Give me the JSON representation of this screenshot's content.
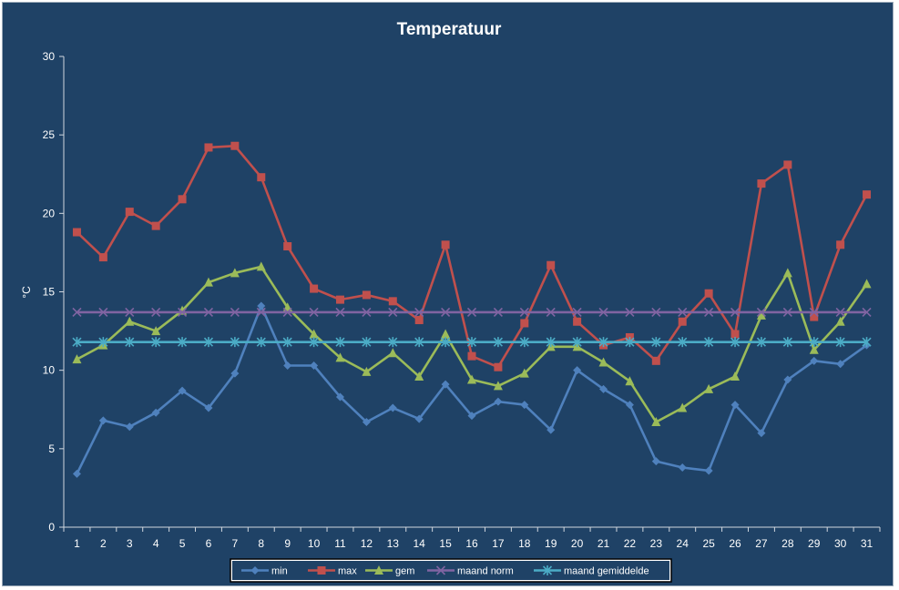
{
  "chart_data": {
    "type": "line",
    "title": "Temperatuur",
    "xlabel": "",
    "ylabel": "°C",
    "ylim": [
      0,
      30
    ],
    "yticks": [
      0,
      5,
      10,
      15,
      20,
      25,
      30
    ],
    "grid": false,
    "legend_position": "bottom",
    "background": "#1f4266",
    "categories": [
      "1",
      "2",
      "3",
      "4",
      "5",
      "6",
      "7",
      "8",
      "9",
      "10",
      "11",
      "12",
      "13",
      "14",
      "15",
      "16",
      "17",
      "18",
      "19",
      "20",
      "21",
      "22",
      "23",
      "24",
      "25",
      "26",
      "27",
      "28",
      "29",
      "30",
      "31"
    ],
    "series": [
      {
        "name": "min",
        "color": "#4f81bd",
        "marker": "diamond",
        "values": [
          3.4,
          6.8,
          6.4,
          7.3,
          8.7,
          7.6,
          9.8,
          14.1,
          10.3,
          10.3,
          8.3,
          6.7,
          7.6,
          6.9,
          9.1,
          7.1,
          8.0,
          7.8,
          6.2,
          10.0,
          8.8,
          7.8,
          4.2,
          3.8,
          3.6,
          7.8,
          6.0,
          9.4,
          10.6,
          10.4,
          11.6
        ]
      },
      {
        "name": "max",
        "color": "#c0504d",
        "marker": "square",
        "values": [
          18.8,
          17.2,
          20.1,
          19.2,
          20.9,
          24.2,
          24.3,
          22.3,
          17.9,
          15.2,
          14.5,
          14.8,
          14.4,
          13.2,
          18.0,
          10.9,
          10.2,
          13.0,
          16.7,
          13.1,
          11.6,
          12.1,
          10.6,
          13.1,
          14.9,
          12.3,
          21.9,
          23.1,
          13.4,
          18.0,
          21.2
        ]
      },
      {
        "name": "gem",
        "color": "#9bbb59",
        "marker": "triangle",
        "values": [
          10.7,
          11.6,
          13.1,
          12.5,
          13.8,
          15.6,
          16.2,
          16.6,
          14.0,
          12.3,
          10.8,
          9.9,
          11.1,
          9.6,
          12.3,
          9.4,
          9.0,
          9.8,
          11.5,
          11.5,
          10.5,
          9.3,
          6.7,
          7.6,
          8.8,
          9.6,
          13.5,
          16.2,
          11.3,
          13.1,
          15.5
        ]
      },
      {
        "name": "maand norm",
        "color": "#8064a2",
        "marker": "x",
        "values": [
          13.7,
          13.7,
          13.7,
          13.7,
          13.7,
          13.7,
          13.7,
          13.7,
          13.7,
          13.7,
          13.7,
          13.7,
          13.7,
          13.7,
          13.7,
          13.7,
          13.7,
          13.7,
          13.7,
          13.7,
          13.7,
          13.7,
          13.7,
          13.7,
          13.7,
          13.7,
          13.7,
          13.7,
          13.7,
          13.7,
          13.7
        ]
      },
      {
        "name": "maand gemiddelde",
        "color": "#4bacc6",
        "marker": "star",
        "values": [
          11.8,
          11.8,
          11.8,
          11.8,
          11.8,
          11.8,
          11.8,
          11.8,
          11.8,
          11.8,
          11.8,
          11.8,
          11.8,
          11.8,
          11.8,
          11.8,
          11.8,
          11.8,
          11.8,
          11.8,
          11.8,
          11.8,
          11.8,
          11.8,
          11.8,
          11.8,
          11.8,
          11.8,
          11.8,
          11.8,
          11.8
        ]
      }
    ]
  }
}
